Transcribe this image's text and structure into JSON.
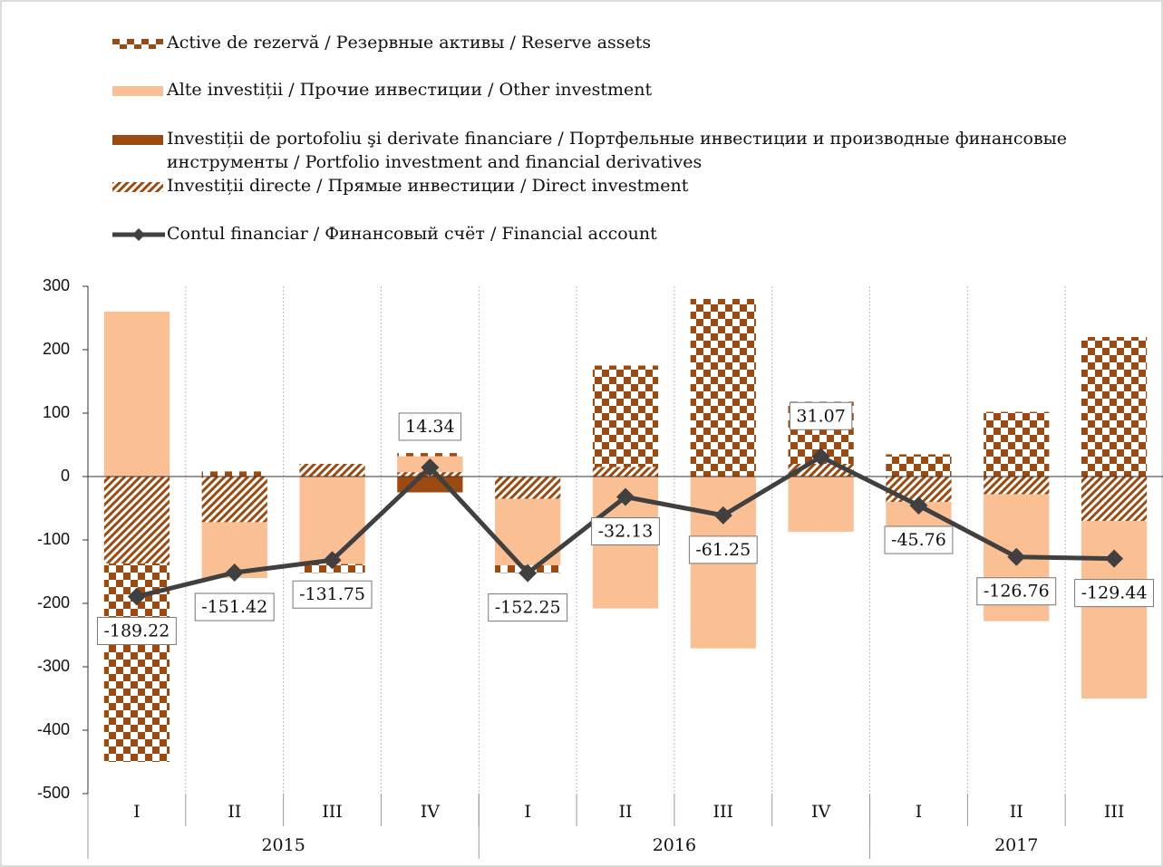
{
  "chart_data": {
    "type": "bar",
    "stacked": true,
    "categories": [
      "I",
      "II",
      "III",
      "IV",
      "I",
      "II",
      "III",
      "IV",
      "I",
      "II",
      "III"
    ],
    "groups": [
      "2015",
      "2016",
      "2017"
    ],
    "ylim": [
      -500,
      300
    ],
    "yticks": [
      -500,
      -400,
      -300,
      -200,
      -100,
      0,
      100,
      200,
      300
    ],
    "series": [
      {
        "name": "Active de rezervă / Резервные активы / Reserve assets",
        "color": "#9c4a0f",
        "pattern": "checker",
        "values": [
          -313,
          8,
          -14,
          5,
          -12,
          160,
          280,
          98,
          35,
          102,
          220
        ]
      },
      {
        "name": "Alte investiții / Прочие инвестиции / Other investment",
        "color": "#fbbf94",
        "pattern": "solid",
        "values": [
          260,
          -88,
          -138,
          25,
          -105,
          -208,
          -271,
          -87,
          -40,
          -200,
          -280
        ]
      },
      {
        "name": "Investiții de portofoliu şi derivate financiare / Портфельные инвестиции и производные финансовые инструменты / Portfolio investment and financial derivatives",
        "color": "#9c4a0f",
        "pattern": "solid",
        "values": [
          0,
          0,
          0,
          -25,
          0,
          0,
          0,
          0,
          0,
          0,
          0
        ]
      },
      {
        "name": "Investiții directe / Прямые инвестиции / Direct investment",
        "color": "#9c4a0f",
        "pattern": "hatch",
        "values": [
          -137,
          -72,
          20,
          7,
          -35,
          15,
          0,
          20,
          -40,
          -28,
          -70
        ]
      },
      {
        "name": "Contul financiar / Финансовый счёт / Financial account",
        "color": "#404040",
        "type": "line",
        "values": [
          -189.22,
          -151.42,
          -131.75,
          14.34,
          -152.25,
          -32.13,
          -61.25,
          31.07,
          -45.76,
          -126.76,
          -129.44
        ]
      }
    ]
  }
}
